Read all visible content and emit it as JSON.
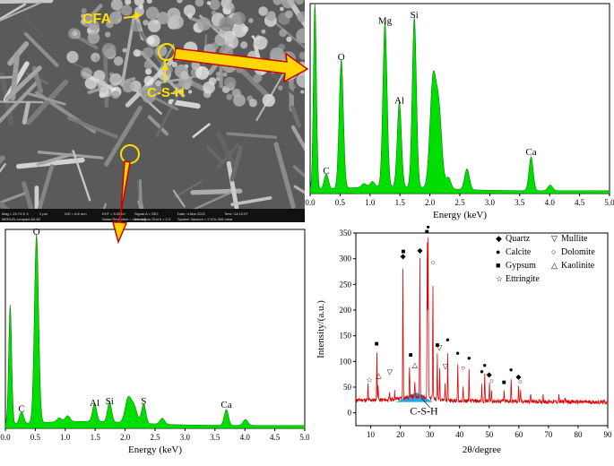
{
  "sem": {
    "labels": {
      "cfa": "CFA",
      "csh": "C-S-H"
    },
    "info_bar": [
      [
        "Mag = 20.74 K X",
        "2 µm",
        "WD = 8.6 mm",
        "EHT = 5.00 kV",
        "Signal A = SE2",
        "Date :4 Mar 2022",
        "Time :14:10:07"
      ],
      [
        "MERLIN compact-60-60",
        "",
        "",
        "Noise Reduction = Line Avg",
        "InlensDuo Grid b = 0 V",
        "System Vacuum = 2.07e-006 mbar",
        ""
      ]
    ],
    "colors": {
      "annotation": "#ffe000",
      "arrow_fill": "#ffd700",
      "arrow_edge": "#cc0000"
    }
  },
  "eds_top": {
    "xlabel": "Energy (keV)",
    "xticks": [
      "0.0",
      "0.5",
      "1.0",
      "1.5",
      "2.0",
      "2.5",
      "3.0",
      "3.5",
      "4.0",
      "4.5",
      "5.0"
    ],
    "peak_labels": [
      {
        "text": "C",
        "x": 0.27,
        "h": 0.08
      },
      {
        "text": "O",
        "x": 0.52,
        "h": 0.68
      },
      {
        "text": "Mg",
        "x": 1.25,
        "h": 0.87
      },
      {
        "text": "Al",
        "x": 1.49,
        "h": 0.45
      },
      {
        "text": "Si",
        "x": 1.74,
        "h": 0.9
      },
      {
        "text": "Ca",
        "x": 3.69,
        "h": 0.18
      }
    ],
    "fill_color": "#00dd00"
  },
  "eds_bot": {
    "xlabel": "Energy (keV)",
    "xticks": [
      "0.0",
      "0.5",
      "1.0",
      "1.5",
      "2.0",
      "2.5",
      "3.0",
      "3.5",
      "4.0",
      "4.5",
      "5.0"
    ],
    "peak_labels": [
      {
        "text": "C",
        "x": 0.27,
        "h": 0.06
      },
      {
        "text": "O",
        "x": 0.52,
        "h": 0.95
      },
      {
        "text": "Al",
        "x": 1.49,
        "h": 0.09
      },
      {
        "text": "Si",
        "x": 1.74,
        "h": 0.1
      },
      {
        "text": "S",
        "x": 2.31,
        "h": 0.1
      },
      {
        "text": "Ca",
        "x": 3.69,
        "h": 0.08
      }
    ],
    "fill_color": "#00dd00"
  },
  "xrd": {
    "ylabel": "Intensity/(a.u.)",
    "xlabel": "2θ/degree",
    "xticks": [
      "10",
      "20",
      "30",
      "40",
      "50",
      "60",
      "70",
      "80",
      "90"
    ],
    "yticks": [
      "0",
      "50",
      "100",
      "150",
      "200",
      "250",
      "300",
      "350"
    ],
    "legend": [
      {
        "symbol": "◆",
        "label": "Quartz"
      },
      {
        "symbol": "▽",
        "label": "Mullite"
      },
      {
        "symbol": "●",
        "label": "Calcite"
      },
      {
        "symbol": "○",
        "label": "Dolomite"
      },
      {
        "symbol": "■",
        "label": "Gypsum"
      },
      {
        "symbol": "△",
        "label": "Kaolinite"
      },
      {
        "symbol": "☆",
        "label": "Ettringite"
      }
    ],
    "hump_label": "C-S-H",
    "line_color": "#e00000",
    "hump_color": "#29a3e0",
    "markers": [
      {
        "x": 9.5,
        "y": 60,
        "s": "☆"
      },
      {
        "x": 12,
        "y": 130,
        "s": "■"
      },
      {
        "x": 12.7,
        "y": 68,
        "s": "△"
      },
      {
        "x": 16.4,
        "y": 75,
        "s": "▽"
      },
      {
        "x": 20.9,
        "y": 300,
        "s": "◆"
      },
      {
        "x": 21,
        "y": 310,
        "s": "■"
      },
      {
        "x": 23.5,
        "y": 108,
        "s": "■"
      },
      {
        "x": 24.9,
        "y": 88,
        "s": "△"
      },
      {
        "x": 26.6,
        "y": 312,
        "s": "◆"
      },
      {
        "x": 29,
        "y": 348,
        "s": "■"
      },
      {
        "x": 29.4,
        "y": 358,
        "s": "●"
      },
      {
        "x": 31,
        "y": 288,
        "s": "○"
      },
      {
        "x": 32.5,
        "y": 128,
        "s": "■"
      },
      {
        "x": 33.2,
        "y": 122,
        "s": "▽"
      },
      {
        "x": 35.2,
        "y": 86,
        "s": "▽"
      },
      {
        "x": 36,
        "y": 138,
        "s": "●"
      },
      {
        "x": 39.4,
        "y": 112,
        "s": "●"
      },
      {
        "x": 41.2,
        "y": 83,
        "s": "○"
      },
      {
        "x": 43.2,
        "y": 102,
        "s": "●"
      },
      {
        "x": 47.5,
        "y": 76,
        "s": "●"
      },
      {
        "x": 48.5,
        "y": 88,
        "s": "●"
      },
      {
        "x": 50,
        "y": 70,
        "s": "◆"
      },
      {
        "x": 50.8,
        "y": 58,
        "s": "○"
      },
      {
        "x": 55,
        "y": 55,
        "s": "■"
      },
      {
        "x": 57.4,
        "y": 80,
        "s": "●"
      },
      {
        "x": 59.9,
        "y": 66,
        "s": "◆"
      },
      {
        "x": 60.5,
        "y": 56,
        "s": "○"
      }
    ]
  }
}
